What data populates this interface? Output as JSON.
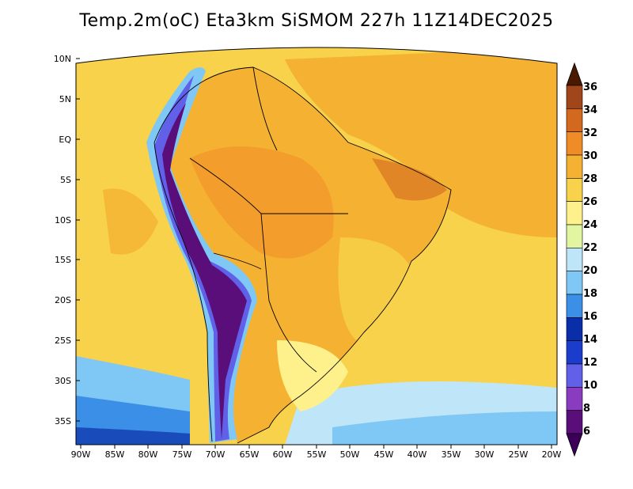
{
  "title": "Temp.2m(oC) Eta3km SiSMOM 227h 11Z14DEC2025",
  "map": {
    "variable": "2 m air temperature",
    "unit": "oC",
    "lon_labels": [
      "90W",
      "85W",
      "80W",
      "75W",
      "70W",
      "65W",
      "60W",
      "55W",
      "50W",
      "45W",
      "40W",
      "35W",
      "30W",
      "25W",
      "20W"
    ],
    "lat_labels": [
      "10N",
      "5N",
      "EQ",
      "5S",
      "10S",
      "15S",
      "20S",
      "25S",
      "30S",
      "35S"
    ]
  },
  "colorbar": {
    "labels": [
      "36",
      "34",
      "32",
      "30",
      "28",
      "26",
      "24",
      "22",
      "20",
      "18",
      "16",
      "14",
      "12",
      "10",
      "8",
      "6"
    ],
    "colors": [
      "#6e2c00",
      "#a0461a",
      "#d2691e",
      "#f08c28",
      "#f5b232",
      "#f7d24a",
      "#fef08a",
      "#e2f5a0",
      "#bfe6f8",
      "#7fc8f5",
      "#3c8fe6",
      "#0a2ea8",
      "#1c3ccc",
      "#6060e8",
      "#8a3cc0",
      "#5a0e7a"
    ],
    "over_color": "#4a1a00",
    "under_color": "#3c005a"
  }
}
